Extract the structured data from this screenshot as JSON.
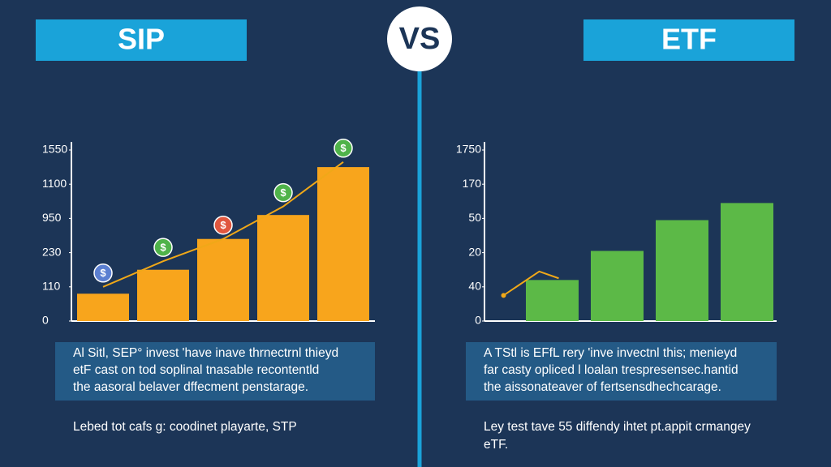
{
  "header": {
    "left": "SIP",
    "vs": "VS",
    "right": "ETF"
  },
  "chart_data": [
    {
      "type": "bar",
      "categories": [
        null,
        null,
        null,
        null,
        null
      ],
      "values": [
        0.8,
        1.5,
        2.4,
        3.1,
        4.5
      ],
      "color": "#f8a51c",
      "ylim": [
        0,
        5
      ],
      "yticks": [
        {
          "value": 0,
          "label": "0"
        },
        {
          "value": 1,
          "label": "110"
        },
        {
          "value": 2,
          "label": "230"
        },
        {
          "value": 3,
          "label": "950"
        },
        {
          "value": 4,
          "label": "1100"
        },
        {
          "value": 5,
          "label": "1550"
        }
      ],
      "line": {
        "x": [
          0,
          1,
          2,
          3,
          4
        ],
        "values": [
          1.0,
          1.75,
          2.4,
          3.35,
          4.65
        ],
        "color": "#f0a818",
        "marker_symbol": "$",
        "marker_colors": [
          "#5b7fd1",
          "#4fb34a",
          "#e0573f",
          "#4fb34a",
          "#4fb34a"
        ]
      }
    },
    {
      "type": "bar",
      "categories": [
        null,
        null,
        null,
        null
      ],
      "values": [
        1.2,
        2.05,
        2.95,
        3.45
      ],
      "color": "#5cb947",
      "ylim": [
        0,
        5
      ],
      "yticks": [
        {
          "value": 0,
          "label": "0"
        },
        {
          "value": 1,
          "label": "40"
        },
        {
          "value": 2,
          "label": "20"
        },
        {
          "value": 3,
          "label": "50"
        },
        {
          "value": 4,
          "label": "170"
        },
        {
          "value": 5,
          "label": "1750"
        }
      ],
      "line": {
        "x": [
          -0.75,
          -0.2,
          0.1
        ],
        "values": [
          0.75,
          1.45,
          1.25
        ],
        "color": "#f0a818"
      }
    }
  ],
  "captions": [
    [
      "Al Sitl, SEP° invest 'have inave thrnectrnl thieyd",
      "etF cast on tod soplinal tnasable recontentld",
      "the aasoral belaver dffecment penstarage."
    ],
    [
      "A TStl is EFfL rery 'inve invectnl this; menieyd",
      "far casty opliced l loalan trespresensec.hantid",
      "the aissonateaver of fertsensdhechcarage."
    ]
  ],
  "footnotes": [
    [
      "Lebed tot cafs g: coodinet playarte, STP"
    ],
    [
      "Ley test tave 55 diffendy ihtet pt.appit crmangey",
      "eTF."
    ]
  ]
}
